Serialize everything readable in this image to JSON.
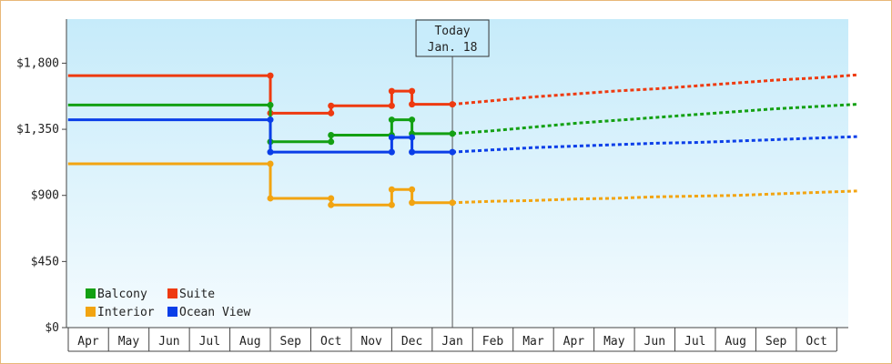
{
  "chart_data": {
    "type": "line",
    "title": "",
    "xlabel": "",
    "ylabel": "",
    "ylim": [
      0,
      2100
    ],
    "y_ticks": [
      0,
      450,
      900,
      1350,
      1800
    ],
    "y_tick_labels": [
      "$0",
      "$450",
      "$900",
      "$1,350",
      "$1,800"
    ],
    "x_tick_labels": [
      "Apr",
      "May",
      "Jun",
      "Jul",
      "Aug",
      "Sep",
      "Oct",
      "Nov",
      "Dec",
      "Jan",
      "Feb",
      "Mar",
      "Apr",
      "May",
      "Jun",
      "Jul",
      "Aug",
      "Sep",
      "Oct"
    ],
    "grid": false,
    "legend_position": "bottom-left",
    "today_marker": {
      "line1": "Today",
      "line2": "Jan. 18",
      "x": 9
    },
    "series": [
      {
        "name": "Suite",
        "color": "#ee3a10",
        "points": [
          [
            -0.5,
            1715
          ],
          [
            4.5,
            1715
          ],
          [
            4.5,
            1460
          ],
          [
            6,
            1460
          ],
          [
            6,
            1510
          ],
          [
            7.5,
            1510
          ],
          [
            7.5,
            1610
          ],
          [
            8,
            1610
          ],
          [
            8,
            1520
          ],
          [
            9,
            1520
          ]
        ],
        "projection": [
          [
            9,
            1520
          ],
          [
            10,
            1545
          ],
          [
            11,
            1570
          ],
          [
            12,
            1590
          ],
          [
            13,
            1610
          ],
          [
            14,
            1625
          ],
          [
            15,
            1645
          ],
          [
            16,
            1665
          ],
          [
            17,
            1685
          ],
          [
            18,
            1700
          ],
          [
            19,
            1720
          ]
        ]
      },
      {
        "name": "Balcony",
        "color": "#13a013",
        "points": [
          [
            -0.5,
            1515
          ],
          [
            4.5,
            1515
          ],
          [
            4.5,
            1265
          ],
          [
            6,
            1265
          ],
          [
            6,
            1310
          ],
          [
            7.5,
            1310
          ],
          [
            7.5,
            1415
          ],
          [
            8,
            1415
          ],
          [
            8,
            1320
          ],
          [
            9,
            1320
          ]
        ],
        "projection": [
          [
            9,
            1320
          ],
          [
            10,
            1340
          ],
          [
            11,
            1365
          ],
          [
            12,
            1390
          ],
          [
            13,
            1410
          ],
          [
            14,
            1430
          ],
          [
            15,
            1450
          ],
          [
            16,
            1470
          ],
          [
            17,
            1490
          ],
          [
            18,
            1505
          ],
          [
            19,
            1520
          ]
        ]
      },
      {
        "name": "Ocean View",
        "color": "#0a3ee8",
        "points": [
          [
            -0.5,
            1415
          ],
          [
            4.5,
            1415
          ],
          [
            4.5,
            1195
          ],
          [
            7.5,
            1195
          ],
          [
            7.5,
            1295
          ],
          [
            8,
            1295
          ],
          [
            8,
            1195
          ],
          [
            9,
            1195
          ]
        ],
        "projection": [
          [
            9,
            1195
          ],
          [
            10,
            1210
          ],
          [
            11,
            1225
          ],
          [
            12,
            1235
          ],
          [
            13,
            1245
          ],
          [
            14,
            1255
          ],
          [
            15,
            1260
          ],
          [
            16,
            1270
          ],
          [
            17,
            1280
          ],
          [
            18,
            1290
          ],
          [
            19,
            1300
          ]
        ]
      },
      {
        "name": "Interior",
        "color": "#f2a411",
        "points": [
          [
            -0.5,
            1115
          ],
          [
            4.5,
            1115
          ],
          [
            4.5,
            880
          ],
          [
            6,
            880
          ],
          [
            6,
            835
          ],
          [
            7.5,
            835
          ],
          [
            7.5,
            940
          ],
          [
            8,
            940
          ],
          [
            8,
            850
          ],
          [
            9,
            850
          ]
        ],
        "projection": [
          [
            9,
            850
          ],
          [
            10,
            860
          ],
          [
            11,
            865
          ],
          [
            12,
            875
          ],
          [
            13,
            880
          ],
          [
            14,
            890
          ],
          [
            15,
            895
          ],
          [
            16,
            900
          ],
          [
            17,
            910
          ],
          [
            18,
            920
          ],
          [
            19,
            930
          ]
        ]
      }
    ],
    "legend": [
      {
        "name": "Balcony",
        "color": "#13a013"
      },
      {
        "name": "Suite",
        "color": "#ee3a10"
      },
      {
        "name": "Interior",
        "color": "#f2a411"
      },
      {
        "name": "Ocean View",
        "color": "#0a3ee8"
      }
    ]
  }
}
